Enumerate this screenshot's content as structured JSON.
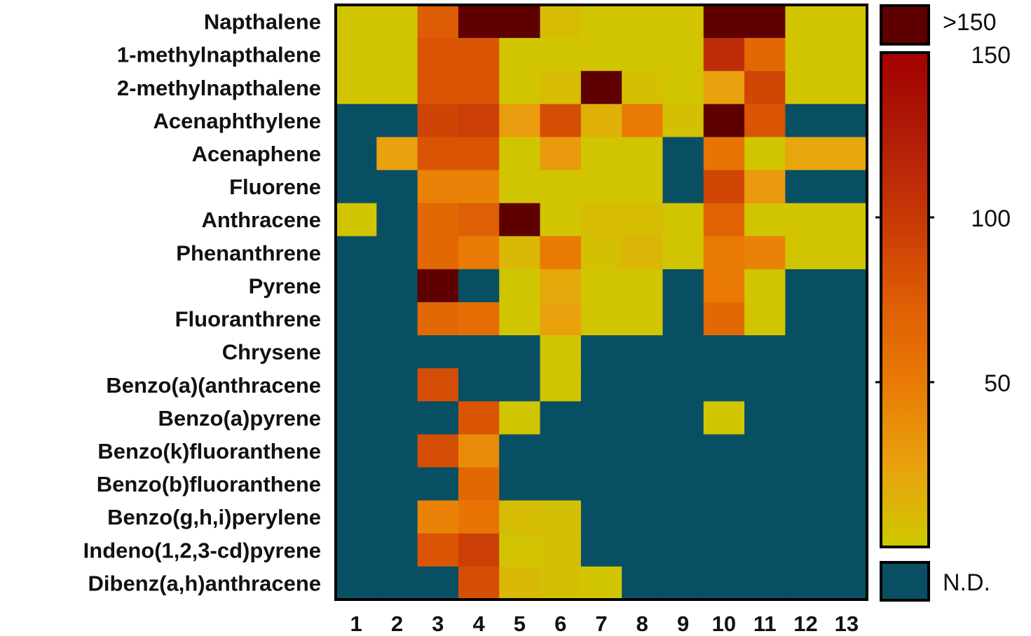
{
  "chart_data": {
    "type": "heatmap",
    "title": "",
    "xlabel": "",
    "ylabel": "",
    "rows": [
      "Napthalene",
      "1-methylnapthalene",
      "2-methylnapthalene",
      "Acenaphthylene",
      "Acenaphene",
      "Fluorene",
      "Anthracene",
      "Phenanthrene",
      "Pyrene",
      "Fluoranthrene",
      "Chrysene",
      "Benzo(a)(anthracene",
      "Benzo(a)pyrene",
      "Benzo(k)fluoranthene",
      "Benzo(b)fluoranthene",
      "Benzo(g,h,i)perylene",
      "Indeno(1,2,3-cd)pyrene",
      "Dibenz(a,h)anthracene"
    ],
    "columns": [
      "1",
      "2",
      "3",
      "4",
      "5",
      "6",
      "7",
      "8",
      "9",
      "10",
      "11",
      "12",
      "13"
    ],
    "nd_value": null,
    "over_value": 999,
    "values": [
      [
        2,
        2,
        75,
        999,
        999,
        8,
        2,
        2,
        2,
        999,
        999,
        2,
        2
      ],
      [
        2,
        2,
        80,
        80,
        2,
        2,
        2,
        2,
        2,
        110,
        65,
        2,
        2
      ],
      [
        2,
        2,
        80,
        80,
        2,
        8,
        999,
        5,
        2,
        25,
        90,
        2,
        2
      ],
      [
        null,
        null,
        92,
        95,
        28,
        85,
        15,
        50,
        5,
        999,
        80,
        null,
        null
      ],
      [
        null,
        25,
        80,
        80,
        2,
        30,
        2,
        2,
        null,
        55,
        2,
        22,
        22
      ],
      [
        null,
        null,
        45,
        45,
        2,
        2,
        2,
        2,
        null,
        90,
        30,
        null,
        null
      ],
      [
        2,
        null,
        65,
        72,
        999,
        2,
        8,
        8,
        2,
        70,
        2,
        2,
        2
      ],
      [
        null,
        null,
        65,
        50,
        10,
        50,
        5,
        12,
        2,
        50,
        45,
        2,
        2
      ],
      [
        null,
        null,
        999,
        null,
        2,
        20,
        2,
        2,
        null,
        50,
        2,
        null,
        null
      ],
      [
        null,
        null,
        65,
        60,
        2,
        25,
        2,
        2,
        null,
        65,
        2,
        null,
        null
      ],
      [
        null,
        null,
        null,
        null,
        null,
        2,
        null,
        null,
        null,
        null,
        null,
        null,
        null
      ],
      [
        null,
        null,
        85,
        null,
        null,
        2,
        null,
        null,
        null,
        null,
        null,
        null,
        null
      ],
      [
        null,
        null,
        null,
        80,
        2,
        null,
        null,
        null,
        null,
        2,
        null,
        null,
        null
      ],
      [
        null,
        null,
        85,
        40,
        null,
        null,
        null,
        null,
        null,
        null,
        null,
        null,
        null
      ],
      [
        null,
        null,
        null,
        65,
        null,
        null,
        null,
        null,
        null,
        null,
        null,
        null,
        null
      ],
      [
        null,
        null,
        45,
        55,
        8,
        5,
        null,
        null,
        null,
        null,
        null,
        null,
        null
      ],
      [
        null,
        null,
        80,
        95,
        3,
        6,
        null,
        null,
        null,
        null,
        null,
        null,
        null
      ],
      [
        null,
        null,
        null,
        85,
        10,
        5,
        2,
        null,
        null,
        null,
        null,
        null,
        null
      ]
    ],
    "colorbar": {
      "min": 0,
      "max": 150,
      "ticks": [
        50,
        100,
        150
      ],
      "over_label": ">150",
      "nd_label": "N.D.",
      "stops": [
        "#cfc800",
        "#e9a10e",
        "#e97a04",
        "#dd5c04",
        "#c73806",
        "#b01c08",
        "#a30000"
      ]
    },
    "colors": {
      "nd": "#084f63",
      "over": "#5e0000",
      "border": "#000000"
    }
  }
}
